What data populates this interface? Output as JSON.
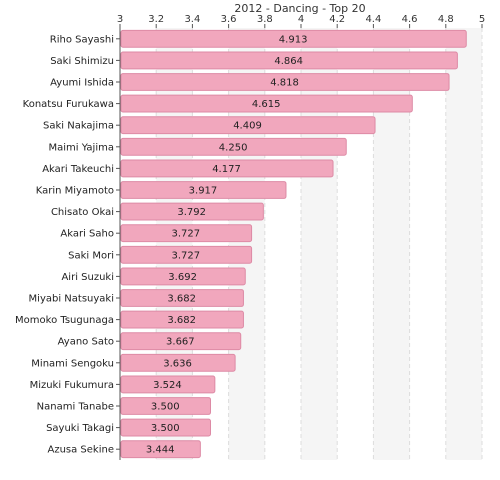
{
  "chart_data": {
    "type": "bar",
    "orientation": "horizontal",
    "title": "2012 - Dancing - Top 20",
    "xlabel": "",
    "ylabel": "",
    "xlim": [
      3,
      5
    ],
    "ticks": [
      "3",
      "3.2",
      "3.4",
      "3.6",
      "3.8",
      "4",
      "4.2",
      "4.4",
      "4.6",
      "4.8",
      "5"
    ],
    "tick_values": [
      3,
      3.2,
      3.4,
      3.6,
      3.8,
      4,
      4.2,
      4.4,
      4.6,
      4.8,
      5
    ],
    "grid": true,
    "bar_color": "#f1a7bd",
    "bar_edge_color": "#dd8aa5",
    "categories": [
      "Riho Sayashi",
      "Saki Shimizu",
      "Ayumi Ishida",
      "Konatsu Furukawa",
      "Saki Nakajima",
      "Maimi Yajima",
      "Akari Takeuchi",
      "Karin Miyamoto",
      "Chisato Okai",
      "Akari Saho",
      "Saki Mori",
      "Airi Suzuki",
      "Miyabi Natsuyaki",
      "Momoko Tsugunaga",
      "Ayano Sato",
      "Minami Sengoku",
      "Mizuki Fukumura",
      "Nanami Tanabe",
      "Sayuki Takagi",
      "Azusa Sekine"
    ],
    "values": [
      4.913,
      4.864,
      4.818,
      4.615,
      4.409,
      4.25,
      4.177,
      3.917,
      3.792,
      3.727,
      3.727,
      3.692,
      3.682,
      3.682,
      3.667,
      3.636,
      3.524,
      3.5,
      3.5,
      3.444
    ],
    "value_labels": [
      "4.913",
      "4.864",
      "4.818",
      "4.615",
      "4.409",
      "4.250",
      "4.177",
      "3.917",
      "3.792",
      "3.727",
      "3.727",
      "3.692",
      "3.682",
      "3.682",
      "3.667",
      "3.636",
      "3.524",
      "3.500",
      "3.500",
      "3.444"
    ]
  }
}
